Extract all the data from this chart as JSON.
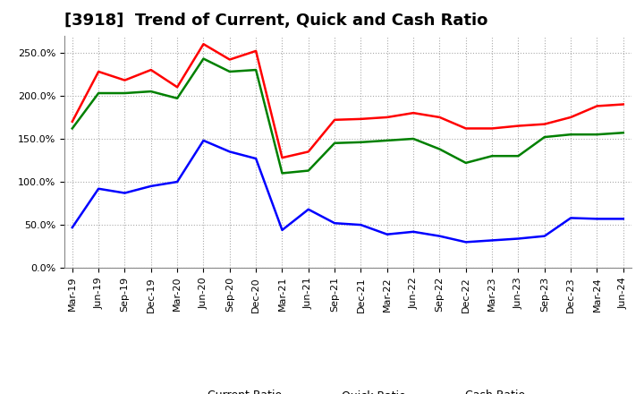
{
  "title": "[3918]  Trend of Current, Quick and Cash Ratio",
  "labels": [
    "Mar-19",
    "Jun-19",
    "Sep-19",
    "Dec-19",
    "Mar-20",
    "Jun-20",
    "Sep-20",
    "Dec-20",
    "Mar-21",
    "Jun-21",
    "Sep-21",
    "Dec-21",
    "Mar-22",
    "Jun-22",
    "Sep-22",
    "Dec-22",
    "Mar-23",
    "Jun-23",
    "Sep-23",
    "Dec-23",
    "Mar-24",
    "Jun-24"
  ],
  "current_ratio": [
    170,
    228,
    218,
    230,
    210,
    260,
    242,
    252,
    128,
    135,
    172,
    173,
    175,
    180,
    175,
    162,
    162,
    165,
    167,
    175,
    188,
    190
  ],
  "quick_ratio": [
    162,
    203,
    203,
    205,
    197,
    243,
    228,
    230,
    110,
    113,
    145,
    146,
    148,
    150,
    138,
    122,
    130,
    130,
    152,
    155,
    155,
    157
  ],
  "cash_ratio": [
    47,
    92,
    87,
    95,
    100,
    148,
    135,
    127,
    44,
    68,
    52,
    50,
    39,
    42,
    37,
    30,
    32,
    34,
    37,
    58,
    57,
    57
  ],
  "current_color": "#ff0000",
  "quick_color": "#008000",
  "cash_color": "#0000ff",
  "ylim": [
    0,
    270
  ],
  "yticks": [
    0,
    50,
    100,
    150,
    200,
    250
  ],
  "background_color": "#ffffff",
  "plot_bg_color": "#ffffff",
  "grid_color": "#aaaaaa",
  "title_fontsize": 13,
  "tick_fontsize": 8,
  "legend_fontsize": 9,
  "linewidth": 1.8
}
